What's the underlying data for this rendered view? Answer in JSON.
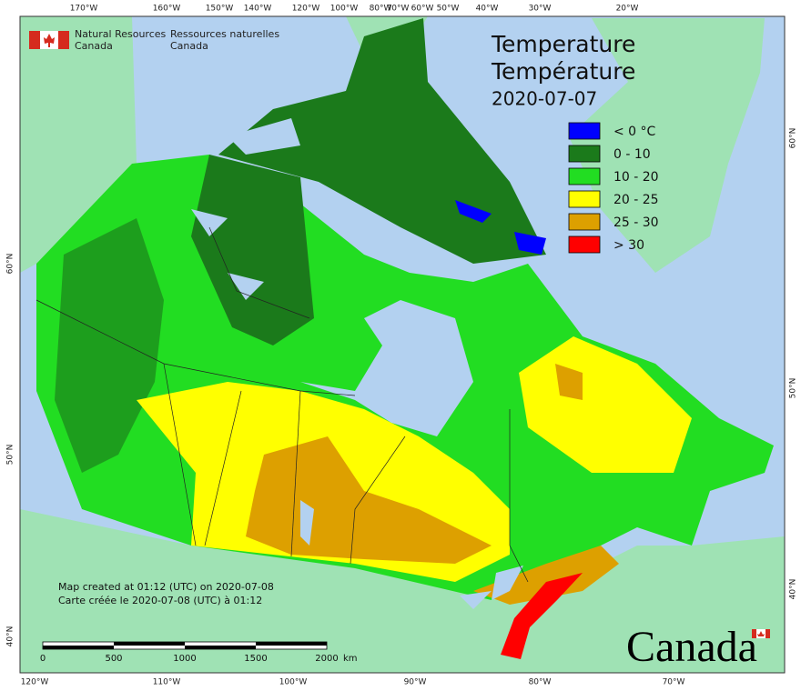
{
  "header": {
    "agency_en": [
      "Natural Resources",
      "Canada"
    ],
    "agency_fr": [
      "Ressources naturelles",
      "Canada"
    ]
  },
  "title": [
    "Temperature",
    "Température"
  ],
  "date": "2020-07-07",
  "legend": [
    {
      "label": "< 0 °C",
      "color": "#0000ff"
    },
    {
      "label": "0 - 10",
      "color": "#1b7a1b"
    },
    {
      "label": "10 - 20",
      "color": "#22dd22"
    },
    {
      "label": "20 - 25",
      "color": "#ffff00"
    },
    {
      "label": "25 - 30",
      "color": "#dda000"
    },
    {
      "label": "> 30",
      "color": "#ff0000"
    }
  ],
  "credits": [
    "Map created at 01:12 (UTC) on 2020-07-08",
    "Carte créée le 2020-07-08 (UTC) à 01:12"
  ],
  "scale_bar": {
    "ticks": [
      "0",
      "500",
      "1000",
      "1500",
      "2000"
    ],
    "unit": "km"
  },
  "graticule": {
    "top": [
      "170°W",
      "160°W",
      "150°W",
      "140°W",
      "120°W",
      "100°W",
      "80°W",
      "70°W",
      "60°W",
      "50°W",
      "40°W",
      "30°W",
      "20°W"
    ],
    "bottom": [
      "120°W",
      "110°W",
      "100°W",
      "90°W",
      "80°W",
      "70°W"
    ],
    "left": [
      "60°N",
      "50°N",
      "40°N"
    ],
    "right": [
      "60°N",
      "50°N",
      "40°N"
    ]
  },
  "wordmark": "Canada"
}
